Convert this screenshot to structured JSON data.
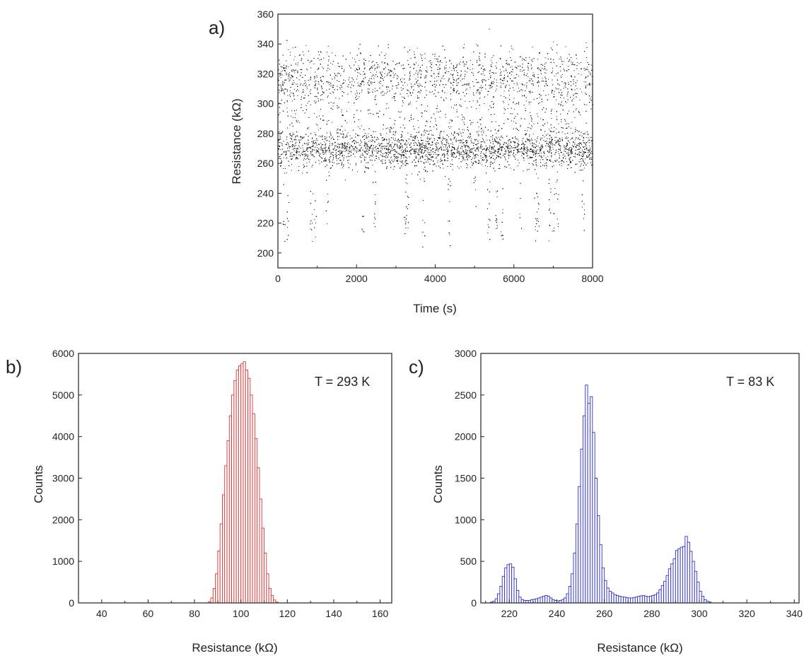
{
  "figure": {
    "panels": [
      {
        "letter": "a)"
      },
      {
        "letter": "b)"
      },
      {
        "letter": "c)"
      }
    ]
  },
  "chart_data": [
    {
      "type": "scatter",
      "panel": "a)",
      "title": "",
      "xlabel": "Time (s)",
      "ylabel": "Resistance (kΩ)",
      "xlim": [
        0,
        8000
      ],
      "ylim": [
        190,
        360
      ],
      "xticks": [
        0,
        2000,
        4000,
        6000,
        8000
      ],
      "yticks": [
        200,
        220,
        240,
        260,
        280,
        300,
        320,
        340,
        360
      ],
      "grid": false,
      "marker_color": "#000000",
      "description_levels": [
        {
          "level": 221,
          "spread": 6
        },
        {
          "level": 269,
          "spread": 6
        },
        {
          "level": 320,
          "spread": 8
        }
      ],
      "gaps_in_high_state_x": [
        880,
        1200,
        2250,
        3250,
        3700,
        4300,
        5000,
        5300,
        5600,
        6550,
        6900,
        7750
      ],
      "low_state_bursts_x": [
        150,
        250,
        850,
        950,
        1250,
        2150,
        2450,
        3230,
        3280,
        3700,
        4350,
        5000,
        5350,
        5550,
        5700,
        6150,
        6550,
        6600,
        6900,
        7000,
        7100,
        7750
      ]
    },
    {
      "type": "bar",
      "panel": "b)",
      "title": "",
      "annotation": "T = 293 K",
      "xlabel": "Resistance (kΩ)",
      "ylabel": "Counts",
      "xlim": [
        30,
        165
      ],
      "ylim": [
        0,
        6000
      ],
      "xticks": [
        40,
        60,
        80,
        100,
        120,
        140,
        160
      ],
      "yticks": [
        0,
        1000,
        2000,
        3000,
        4000,
        5000,
        6000
      ],
      "grid": false,
      "color": "#e03030",
      "bin_start": 86,
      "bin_width": 1,
      "values": [
        30,
        120,
        350,
        700,
        1250,
        1900,
        2600,
        3300,
        3900,
        4500,
        5000,
        5350,
        5600,
        5700,
        5750,
        5800,
        5600,
        5400,
        5000,
        4550,
        3950,
        3250,
        2500,
        1800,
        1200,
        700,
        350,
        180,
        70,
        20
      ]
    },
    {
      "type": "bar",
      "panel": "c)",
      "title": "",
      "annotation": "T = 83 K",
      "xlabel": "Resistance (kΩ)",
      "ylabel": "Counts",
      "xlim": [
        208,
        342
      ],
      "ylim": [
        0,
        3000
      ],
      "xticks": [
        220,
        240,
        260,
        280,
        300,
        320,
        340
      ],
      "yticks": [
        0,
        500,
        1000,
        1500,
        2000,
        2500,
        3000
      ],
      "grid": false,
      "color": "#2f2fd0",
      "bin_start": 212,
      "bin_width": 1,
      "values": [
        10,
        20,
        50,
        110,
        200,
        320,
        420,
        460,
        470,
        430,
        290,
        150,
        70,
        40,
        30,
        30,
        30,
        40,
        45,
        50,
        60,
        70,
        80,
        90,
        80,
        60,
        40,
        30,
        25,
        30,
        40,
        60,
        110,
        200,
        350,
        600,
        950,
        1400,
        1850,
        2250,
        2620,
        2400,
        2480,
        2050,
        1500,
        1050,
        700,
        420,
        270,
        180,
        140,
        120,
        100,
        90,
        80,
        75,
        70,
        65,
        60,
        60,
        65,
        70,
        80,
        85,
        90,
        80,
        75,
        80,
        90,
        100,
        120,
        160,
        210,
        260,
        330,
        410,
        470,
        530,
        630,
        650,
        670,
        680,
        800,
        730,
        620,
        500,
        380,
        250,
        140,
        80,
        40,
        20,
        10
      ]
    }
  ]
}
